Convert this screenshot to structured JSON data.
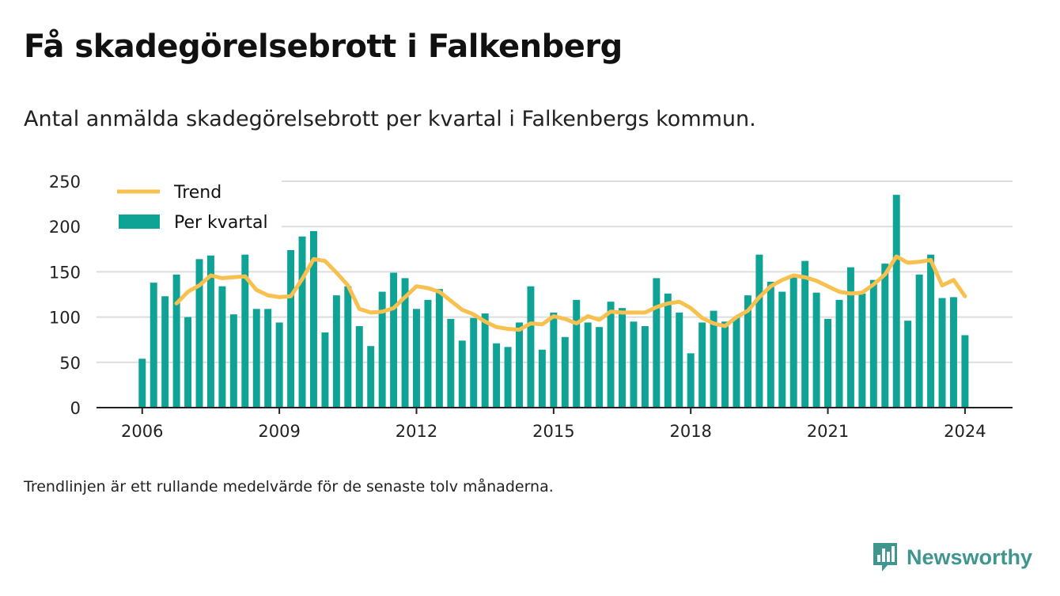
{
  "title": "Få skadegörelsebrott i Falkenberg",
  "subtitle": "Antal anmälda skadegörelsebrott per kvartal i Falkenbergs kommun.",
  "footnote": "Trendlinjen är ett rullande medelvärde för de senaste tolv månaderna.",
  "brand": {
    "name": "Newsworthy",
    "icon": "newsworthy-logo-icon"
  },
  "colors": {
    "bar": "#0fa396",
    "trend": "#f7c04f",
    "grid": "#dddddd",
    "axis": "#222222",
    "brand": "#3f968e"
  },
  "chart_data": {
    "type": "bar",
    "grid": true,
    "legend_position": "top-left",
    "x_tick_labels": [
      "2006",
      "2009",
      "2012",
      "2015",
      "2018",
      "2021",
      "2024"
    ],
    "x_tick_values": [
      2006,
      2009,
      2012,
      2015,
      2018,
      2021,
      2024
    ],
    "y_ticks": [
      0,
      50,
      100,
      150,
      200,
      250
    ],
    "xlim": [
      2005,
      2025.04
    ],
    "ylim": [
      0,
      250
    ],
    "x": [
      2006.0,
      2006.25,
      2006.5,
      2006.75,
      2007.0,
      2007.25,
      2007.5,
      2007.75,
      2008.0,
      2008.25,
      2008.5,
      2008.75,
      2009.0,
      2009.25,
      2009.5,
      2009.75,
      2010.0,
      2010.25,
      2010.5,
      2010.75,
      2011.0,
      2011.25,
      2011.5,
      2011.75,
      2012.0,
      2012.25,
      2012.5,
      2012.75,
      2013.0,
      2013.25,
      2013.5,
      2013.75,
      2014.0,
      2014.25,
      2014.5,
      2014.75,
      2015.0,
      2015.25,
      2015.5,
      2015.75,
      2016.0,
      2016.25,
      2016.5,
      2016.75,
      2017.0,
      2017.25,
      2017.5,
      2017.75,
      2018.0,
      2018.25,
      2018.5,
      2018.75,
      2019.0,
      2019.25,
      2019.5,
      2019.75,
      2020.0,
      2020.25,
      2020.5,
      2020.75,
      2021.0,
      2021.25,
      2021.5,
      2021.75,
      2022.0,
      2022.25,
      2022.5,
      2022.75,
      2023.0,
      2023.25,
      2023.5,
      2023.75,
      2024.0
    ],
    "series": [
      {
        "name": "Per kvartal",
        "kind": "bar",
        "values": [
          54,
          138,
          123,
          147,
          100,
          164,
          168,
          134,
          103,
          169,
          109,
          109,
          94,
          174,
          189,
          195,
          83,
          124,
          134,
          90,
          68,
          128,
          149,
          143,
          109,
          119,
          131,
          98,
          74,
          99,
          104,
          71,
          67,
          94,
          134,
          64,
          105,
          78,
          119,
          94,
          89,
          117,
          110,
          95,
          90,
          143,
          126,
          105,
          60,
          94,
          107,
          95,
          100,
          124,
          169,
          139,
          128,
          145,
          162,
          127,
          98,
          119,
          155,
          126,
          141,
          159,
          235,
          96,
          147,
          169,
          121,
          122,
          80
        ]
      },
      {
        "name": "Trend",
        "kind": "line",
        "values": [
          null,
          null,
          null,
          115,
          128,
          135,
          146,
          143,
          144,
          145,
          130,
          124,
          122,
          123,
          142,
          164,
          162,
          149,
          135,
          109,
          105,
          106,
          110,
          122,
          134,
          132,
          128,
          118,
          108,
          103,
          95,
          89,
          87,
          86,
          93,
          92,
          101,
          98,
          93,
          101,
          97,
          106,
          105,
          105,
          105,
          111,
          115,
          117,
          110,
          99,
          93,
          90,
          100,
          107,
          122,
          134,
          141,
          146,
          144,
          140,
          134,
          128,
          126,
          127,
          136,
          147,
          167,
          160,
          161,
          163,
          135,
          141,
          123
        ]
      }
    ]
  }
}
